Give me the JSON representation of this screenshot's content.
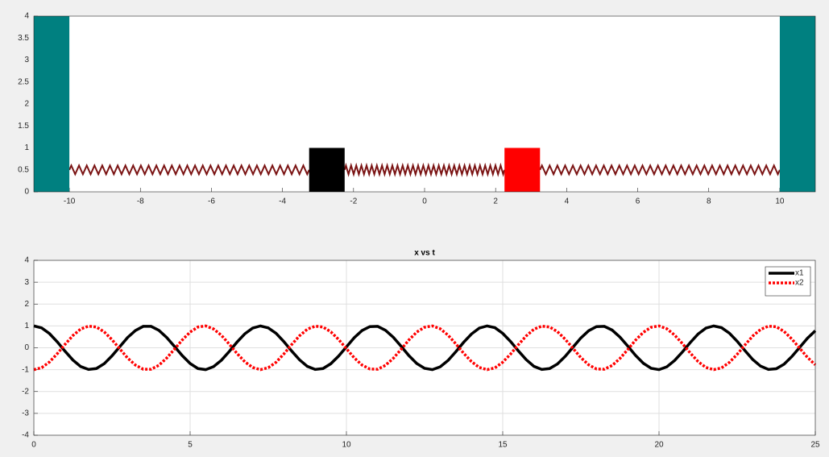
{
  "chart_data": [
    {
      "type": "spring-mass",
      "xlim": [
        -11,
        11
      ],
      "ylim": [
        0,
        4
      ],
      "xticks": [
        -10,
        -8,
        -6,
        -4,
        -2,
        0,
        2,
        4,
        6,
        8,
        10
      ],
      "yticks": [
        0,
        0.5,
        1,
        1.5,
        2,
        2.5,
        3,
        3.5,
        4
      ],
      "grid": false,
      "blocks": [
        {
          "x": [
            -11,
            -10
          ],
          "height": 4,
          "color": "#008080"
        },
        {
          "x": [
            -3.25,
            -2.25
          ],
          "height": 1,
          "color": "#000000"
        },
        {
          "x": [
            2.25,
            3.25
          ],
          "height": 1,
          "color": "#ff0000"
        },
        {
          "x": [
            10,
            11
          ],
          "height": 4,
          "color": "#008080"
        }
      ],
      "spring_y": [
        0.4,
        0.6
      ],
      "spring_color": "#7b1414"
    },
    {
      "type": "line",
      "title": "x vs t",
      "x": [
        0,
        0.25,
        0.5,
        0.75,
        1,
        1.25,
        1.5,
        1.75,
        2,
        2.25,
        2.5,
        2.75,
        3,
        3.25,
        3.5,
        3.75,
        4,
        4.25,
        4.5,
        4.75,
        5,
        5.25,
        5.5,
        5.75,
        6,
        6.25,
        6.5,
        6.75,
        7,
        7.25,
        7.5,
        7.75,
        8,
        8.25,
        8.5,
        8.75,
        9,
        9.25,
        9.5,
        9.75,
        10,
        10.25,
        10.5,
        10.75,
        11,
        11.25,
        11.5,
        11.75,
        12,
        12.25,
        12.5,
        12.75,
        13,
        13.25,
        13.5,
        13.75,
        14,
        14.25,
        14.5,
        14.75,
        15,
        15.25,
        15.5,
        15.75,
        16,
        16.25,
        16.5,
        16.75,
        17,
        17.25,
        17.5,
        17.75,
        18,
        18.25,
        18.5,
        18.75,
        19,
        19.25,
        19.5,
        19.75,
        20,
        20.25,
        20.5,
        20.75,
        21,
        21.25,
        21.5,
        21.75,
        22,
        22.25,
        22.5,
        22.75,
        23,
        23.25,
        23.5,
        23.75,
        24,
        24.25,
        24.5,
        24.75,
        25
      ],
      "series": [
        {
          "name": "x1",
          "color": "#000000",
          "dash": "solid",
          "values": [
            1,
            0.91,
            0.65,
            0.27,
            -0.16,
            -0.56,
            -0.86,
            -0.99,
            -0.95,
            -0.73,
            -0.37,
            0.05,
            0.47,
            0.79,
            0.98,
            0.98,
            0.8,
            0.47,
            0.06,
            -0.36,
            -0.72,
            -0.95,
            -1,
            -0.86,
            -0.57,
            -0.17,
            0.26,
            0.64,
            0.9,
            1,
            0.91,
            0.66,
            0.28,
            -0.15,
            -0.55,
            -0.85,
            -0.99,
            -0.95,
            -0.73,
            -0.38,
            0.04,
            0.46,
            0.79,
            0.97,
            0.98,
            0.8,
            0.48,
            0.07,
            -0.36,
            -0.72,
            -0.94,
            -1,
            -0.87,
            -0.58,
            -0.18,
            0.25,
            0.63,
            0.9,
            1,
            0.92,
            0.66,
            0.29,
            -0.14,
            -0.54,
            -0.85,
            -0.99,
            -0.95,
            -0.74,
            -0.39,
            0.03,
            0.45,
            0.78,
            0.97,
            0.98,
            0.81,
            0.49,
            0.08,
            -0.35,
            -0.71,
            -0.94,
            -1,
            -0.87,
            -0.58,
            -0.19,
            0.24,
            0.63,
            0.9,
            1,
            0.92,
            0.67,
            0.3,
            -0.13,
            -0.54,
            -0.84,
            -0.99,
            -0.96,
            -0.75,
            -0.4,
            0.02,
            0.44,
            0.78
          ]
        },
        {
          "name": "x2",
          "color": "#ff0000",
          "dash": "dotted",
          "values": [
            -1,
            -0.91,
            -0.65,
            -0.27,
            0.16,
            0.56,
            0.86,
            0.99,
            0.95,
            0.73,
            0.37,
            -0.05,
            -0.47,
            -0.79,
            -0.98,
            -0.98,
            -0.8,
            -0.47,
            -0.06,
            0.36,
            0.72,
            0.95,
            1,
            0.86,
            0.57,
            0.17,
            -0.26,
            -0.64,
            -0.9,
            -1,
            -0.91,
            -0.66,
            -0.28,
            0.15,
            0.55,
            0.85,
            0.99,
            0.95,
            0.73,
            0.38,
            -0.04,
            -0.46,
            -0.79,
            -0.97,
            -0.98,
            -0.8,
            -0.48,
            -0.07,
            0.36,
            0.72,
            0.94,
            1,
            0.87,
            0.58,
            0.18,
            -0.25,
            -0.63,
            -0.9,
            -1,
            -0.92,
            -0.66,
            -0.29,
            0.14,
            0.54,
            0.85,
            0.99,
            0.95,
            0.74,
            0.39,
            -0.03,
            -0.45,
            -0.78,
            -0.97,
            -0.98,
            -0.81,
            -0.49,
            -0.08,
            0.35,
            0.71,
            0.94,
            1,
            0.87,
            0.58,
            0.19,
            -0.24,
            -0.63,
            -0.9,
            -1,
            -0.92,
            -0.67,
            -0.3,
            0.13,
            0.54,
            0.84,
            0.99,
            0.96,
            0.75,
            0.4,
            -0.02,
            -0.44,
            -0.78
          ]
        }
      ],
      "xlim": [
        0,
        25
      ],
      "ylim": [
        -4,
        4
      ],
      "xticks": [
        0,
        5,
        10,
        15,
        20,
        25
      ],
      "yticks": [
        -4,
        -3,
        -2,
        -1,
        0,
        1,
        2,
        3,
        4
      ],
      "grid": true,
      "legend": "top-right"
    }
  ]
}
